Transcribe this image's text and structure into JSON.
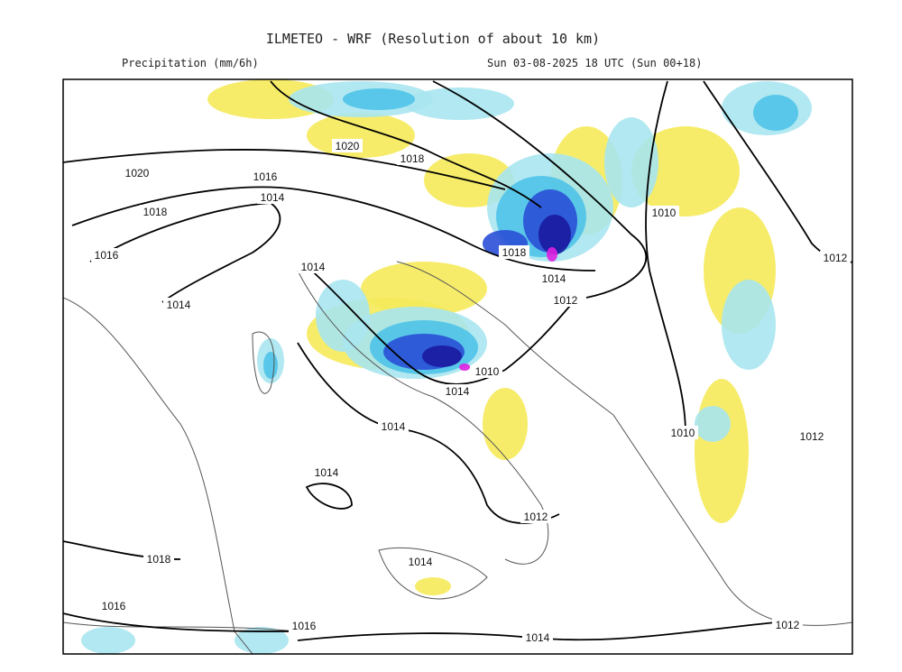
{
  "header": {
    "title": "ILMETEO - WRF (Resolution of about 10 km)",
    "variable": "Precipitation (mm/6h)",
    "valid_time": "Sun 03-08-2025 18 UTC (Sun 00+18)"
  },
  "isobar_labels": [
    "1020",
    "1018",
    "1020",
    "1016",
    "1014",
    "1018",
    "1016",
    "1014",
    "1014",
    "1018",
    "1014",
    "1012",
    "1010",
    "1012",
    "1010",
    "1014",
    "1014",
    "1010",
    "1012",
    "1014",
    "1012",
    "1018",
    "1014",
    "1016",
    "1016",
    "1014",
    "1012"
  ]
}
